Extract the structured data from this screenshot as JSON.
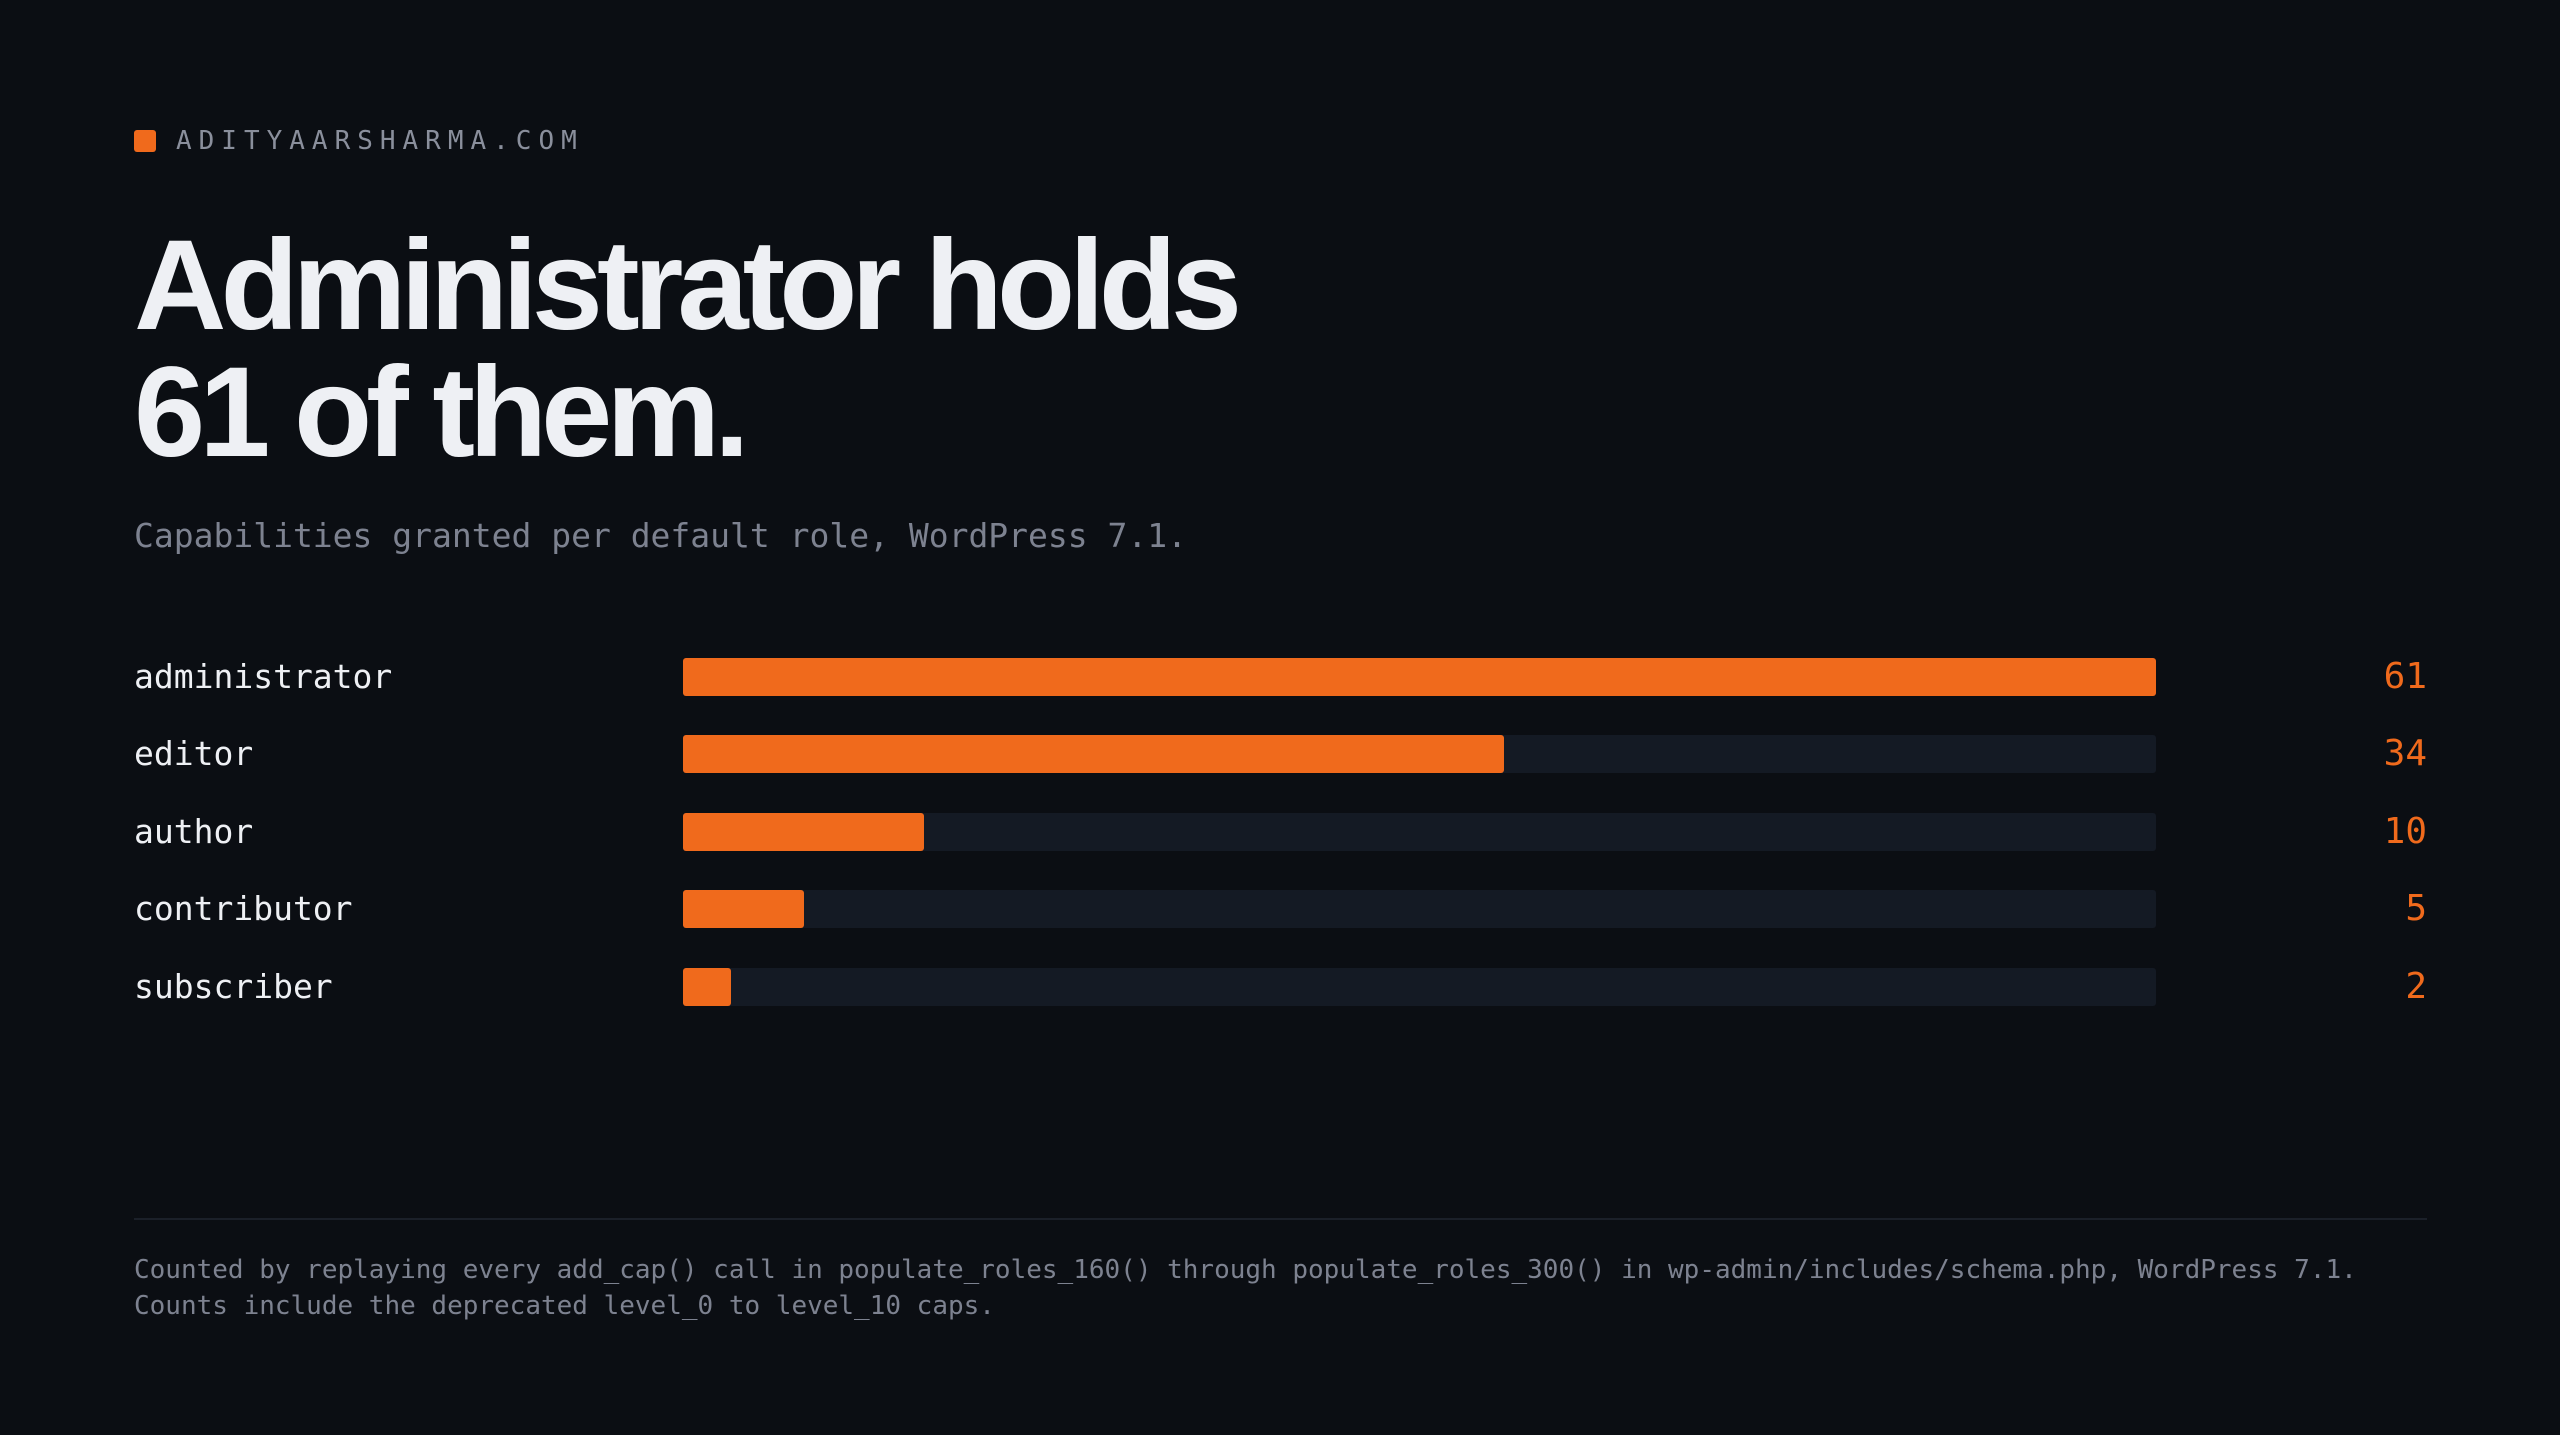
{
  "brand": "ADITYAARSHARMA.COM",
  "chart_data": {
    "type": "bar",
    "orientation": "horizontal",
    "title": "Administrator holds 61 of them.",
    "subtitle": "Capabilities granted per default role, WordPress 7.1.",
    "categories": [
      "administrator",
      "editor",
      "author",
      "contributor",
      "subscriber"
    ],
    "values": [
      61,
      34,
      10,
      5,
      2
    ],
    "color": "#f06a1c"
  },
  "footnote": [
    "Counted by replaying every add_cap() call in populate_roles_160() through populate_roles_300() in wp-admin/includes/schema.php, WordPress 7.1.",
    "Counts include the deprecated level_0 to level_10 caps."
  ]
}
